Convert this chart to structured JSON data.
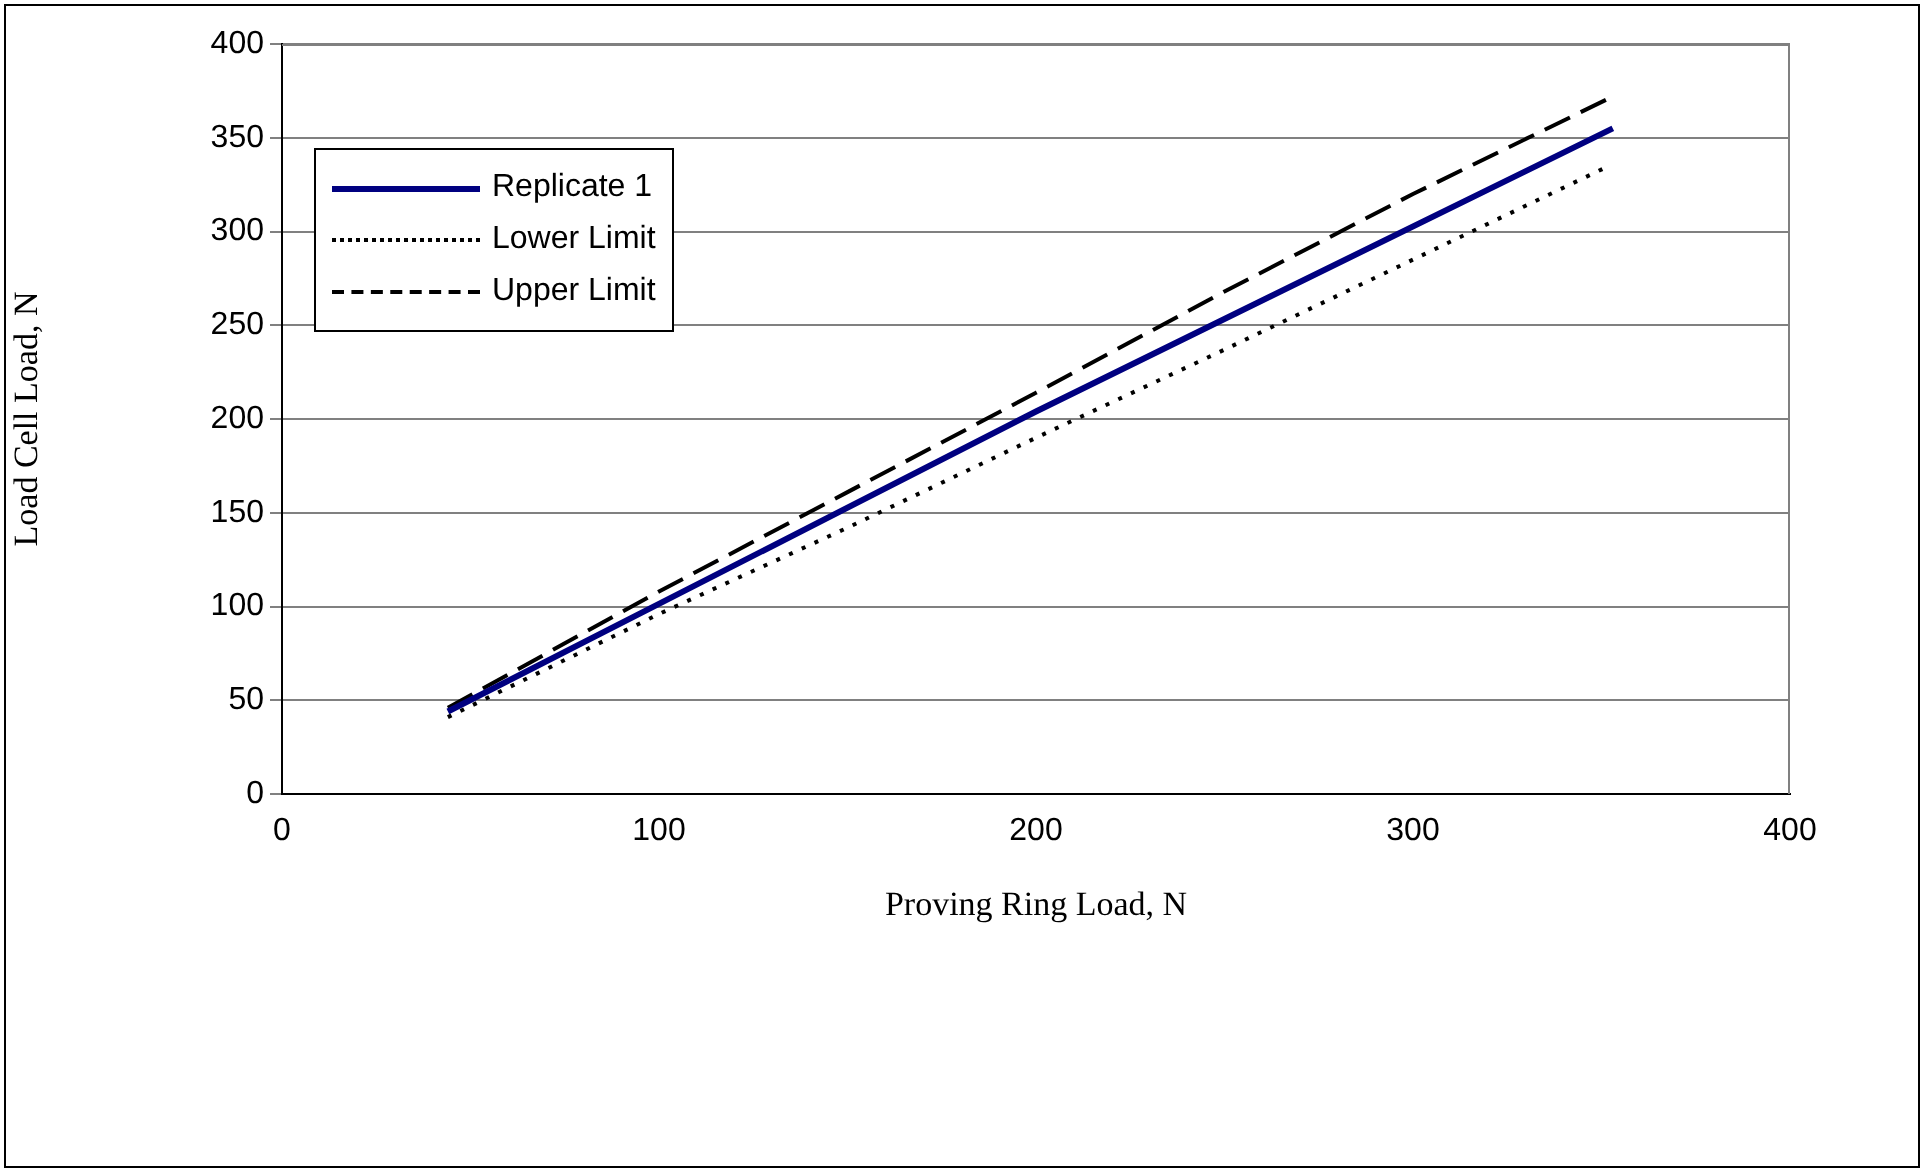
{
  "chart_data": {
    "type": "line",
    "xlabel": "Proving Ring Load, N",
    "ylabel": "Load Cell Load, N",
    "xlim": [
      0,
      400
    ],
    "xticks": [
      0,
      100,
      200,
      300,
      400
    ],
    "ylim": [
      0,
      400
    ],
    "yticks": [
      0,
      50,
      100,
      150,
      200,
      250,
      300,
      350,
      400
    ],
    "grid": "y",
    "legend": "top left",
    "marker": "none",
    "series": [
      {
        "name": "Replicate 1",
        "color": "#000080",
        "line_style": "solid",
        "x": [
          44,
          200,
          353
        ],
        "values": [
          44,
          204,
          355
        ]
      },
      {
        "name": "Lower Limit",
        "color": "#000000",
        "line_style": "dotted",
        "x": [
          44,
          100,
          150,
          200,
          250,
          300,
          352
        ],
        "values": [
          41,
          96,
          142,
          190,
          237,
          285,
          335
        ]
      },
      {
        "name": "Upper Limit",
        "color": "#000000",
        "line_style": "dashed",
        "x": [
          44,
          100,
          150,
          200,
          250,
          300,
          353
        ],
        "values": [
          46,
          108,
          161,
          214,
          268,
          320,
          372
        ]
      }
    ]
  }
}
